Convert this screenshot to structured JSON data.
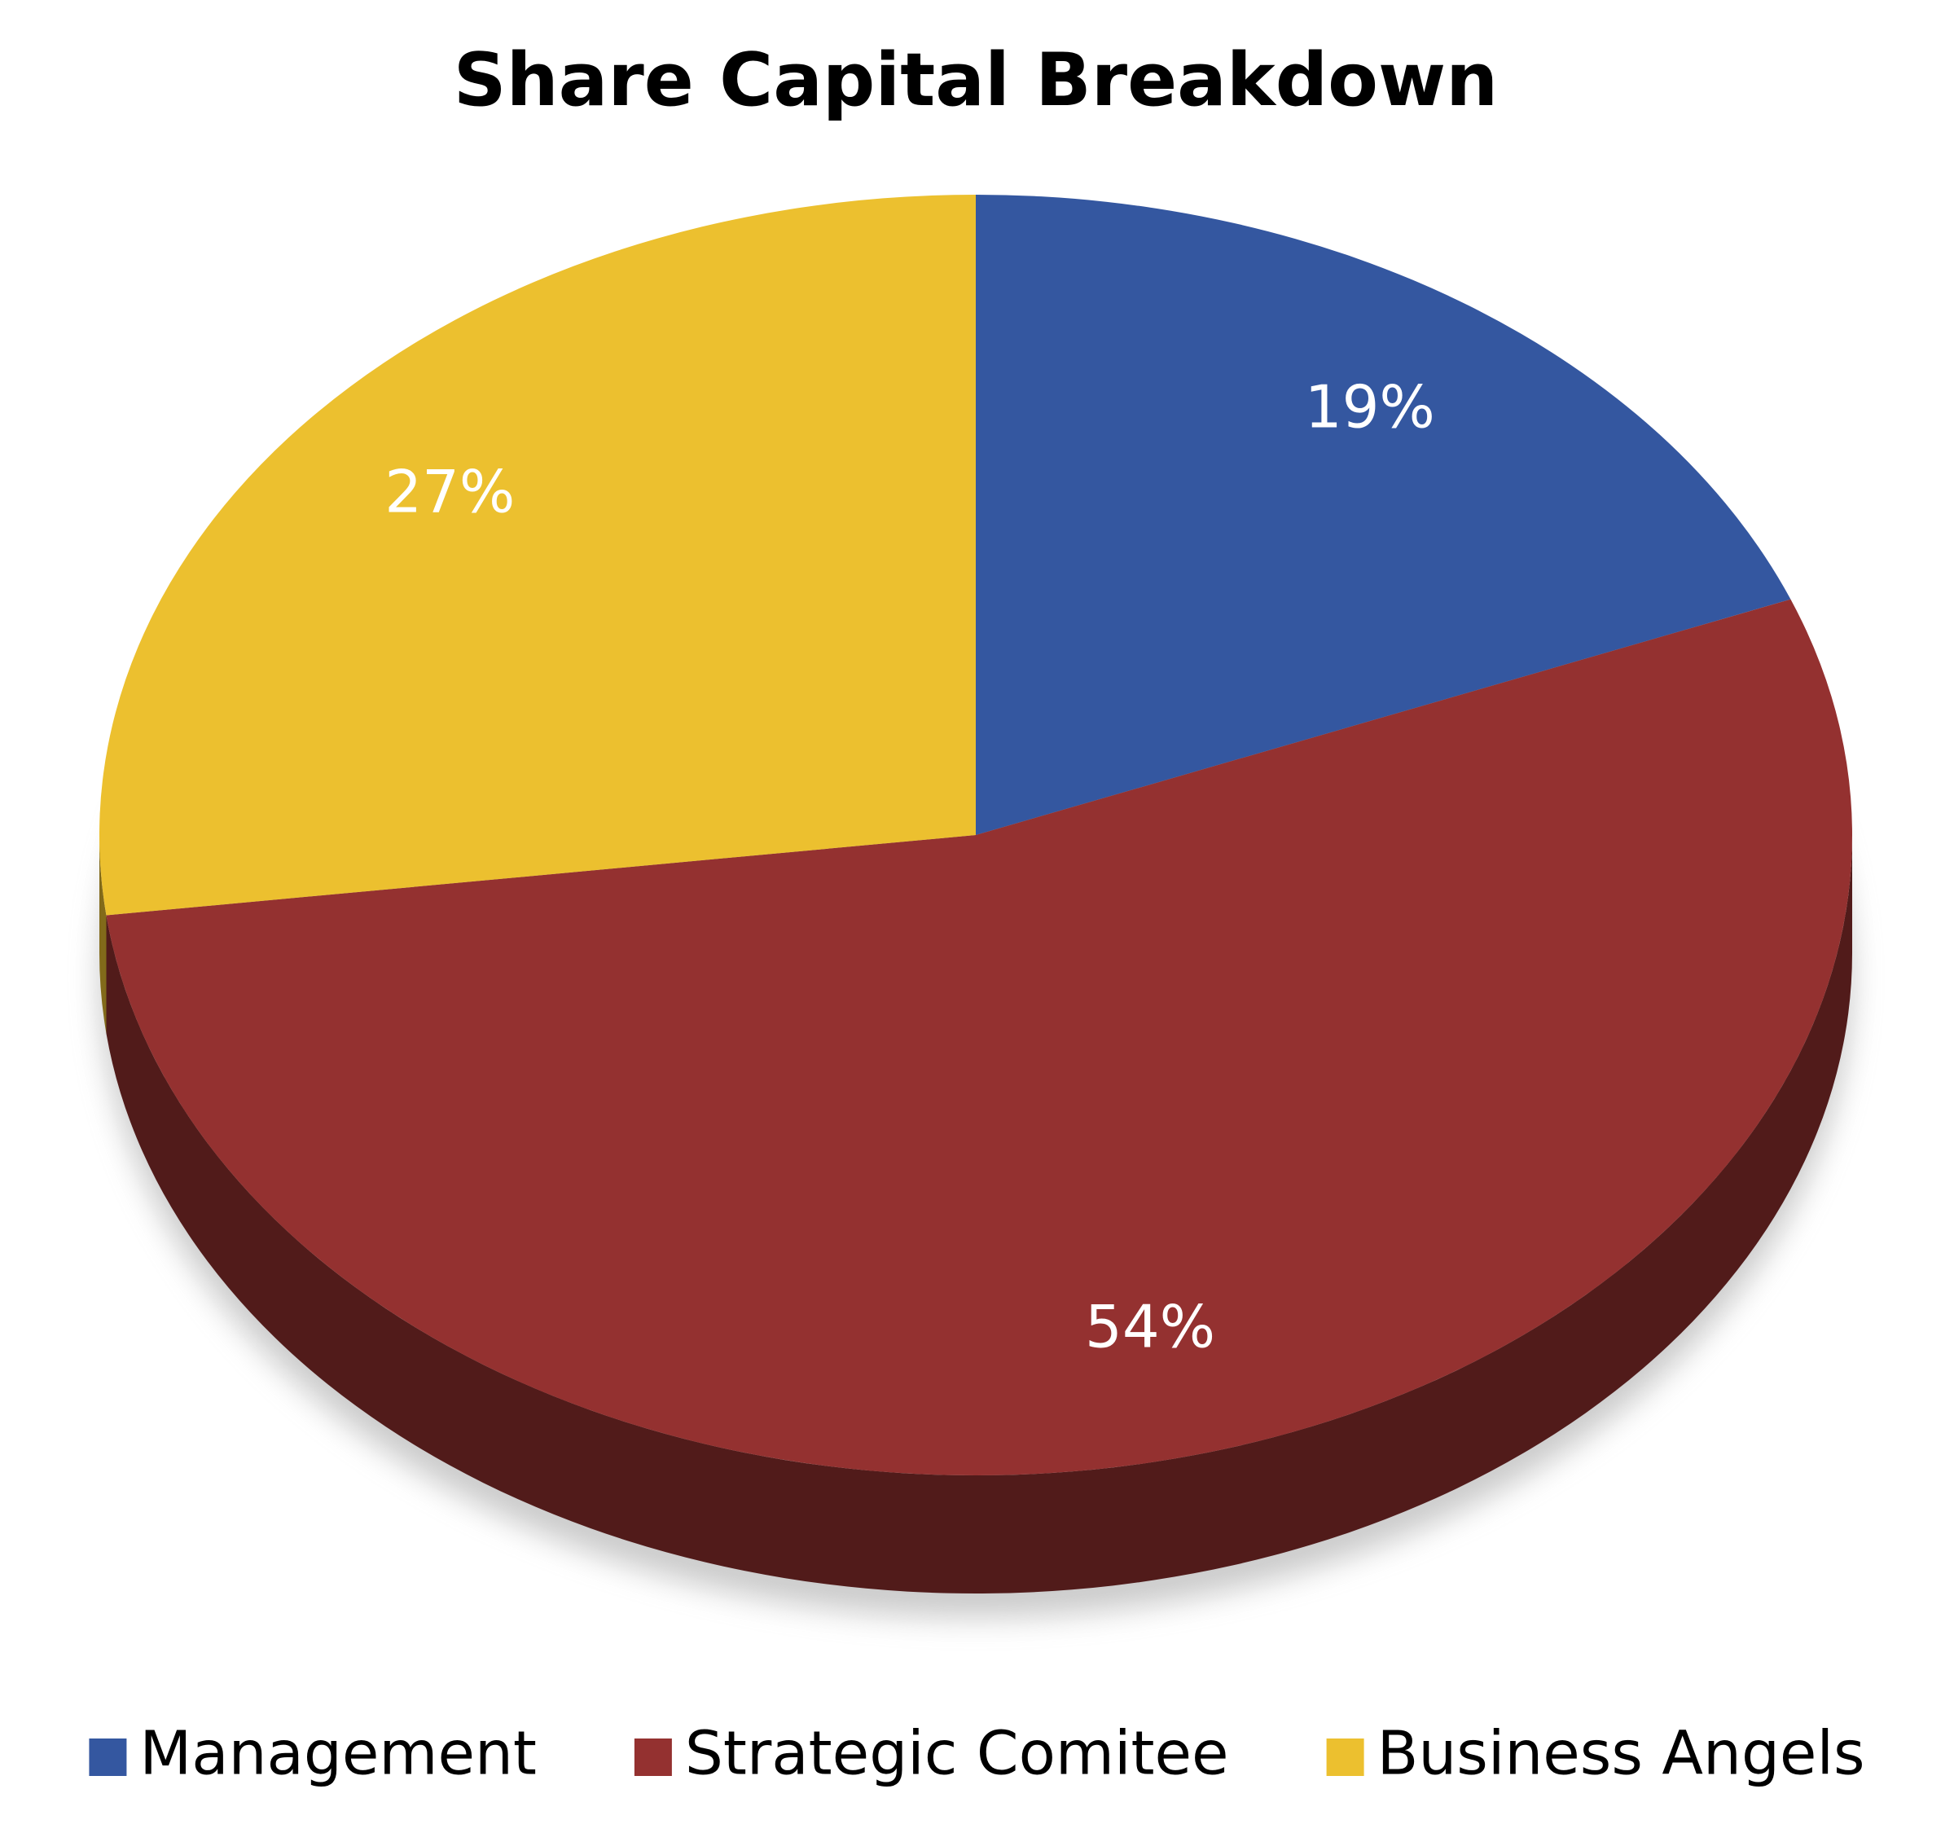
{
  "chart_data": {
    "type": "pie",
    "title": "Share Capital Breakdown",
    "categories": [
      "Management",
      "Strategic Comitee",
      "Business Angels"
    ],
    "values": [
      19,
      54,
      27
    ],
    "value_labels": [
      "19%",
      "54%",
      "27%"
    ],
    "colors": [
      "#3457a0",
      "#943130",
      "#ecc02f"
    ],
    "legend": "bottom"
  }
}
